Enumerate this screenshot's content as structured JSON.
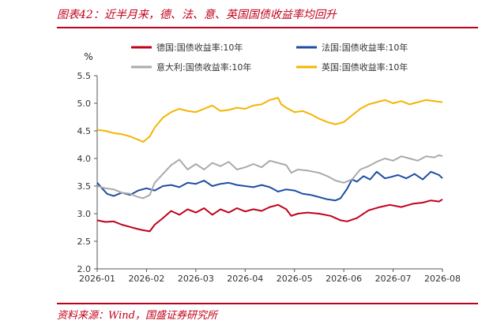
{
  "header": {
    "title": "图表42：近半月来，德、法、意、英国国债收益率均回升"
  },
  "footer": {
    "source": "资料来源：Wind，国盛证券研究所"
  },
  "chart_data": {
    "type": "line",
    "title": "",
    "ylabel": "%",
    "ylim": [
      2.0,
      5.5
    ],
    "yticks": [
      "2.0",
      "2.5",
      "3.0",
      "3.5",
      "4.0",
      "4.5",
      "5.0",
      "5.5"
    ],
    "xlim": [
      0,
      210
    ],
    "xticks": [
      {
        "label": "2026-01",
        "x": 0
      },
      {
        "label": "2026-02",
        "x": 30
      },
      {
        "label": "2026-03",
        "x": 60
      },
      {
        "label": "2026-04",
        "x": 90
      },
      {
        "label": "2026-05",
        "x": 120
      },
      {
        "label": "2026-06",
        "x": 150
      },
      {
        "label": "2026-07",
        "x": 180
      },
      {
        "label": "2026-08",
        "x": 210
      }
    ],
    "grid": false,
    "legend_position": "top",
    "series": [
      {
        "name": "德国:国债收益率:10年",
        "color": "#c0001a",
        "points": [
          [
            0,
            2.88
          ],
          [
            5,
            2.85
          ],
          [
            10,
            2.86
          ],
          [
            15,
            2.8
          ],
          [
            20,
            2.76
          ],
          [
            25,
            2.72
          ],
          [
            28,
            2.7
          ],
          [
            32,
            2.68
          ],
          [
            35,
            2.8
          ],
          [
            40,
            2.92
          ],
          [
            45,
            3.05
          ],
          [
            50,
            2.98
          ],
          [
            55,
            3.08
          ],
          [
            60,
            3.02
          ],
          [
            65,
            3.1
          ],
          [
            70,
            2.98
          ],
          [
            75,
            3.08
          ],
          [
            80,
            3.02
          ],
          [
            85,
            3.1
          ],
          [
            90,
            3.04
          ],
          [
            95,
            3.08
          ],
          [
            100,
            3.05
          ],
          [
            105,
            3.12
          ],
          [
            110,
            3.16
          ],
          [
            115,
            3.08
          ],
          [
            118,
            2.96
          ],
          [
            122,
            3.0
          ],
          [
            128,
            3.02
          ],
          [
            135,
            3.0
          ],
          [
            142,
            2.96
          ],
          [
            148,
            2.88
          ],
          [
            152,
            2.86
          ],
          [
            158,
            2.92
          ],
          [
            165,
            3.06
          ],
          [
            172,
            3.12
          ],
          [
            178,
            3.16
          ],
          [
            185,
            3.12
          ],
          [
            192,
            3.18
          ],
          [
            198,
            3.2
          ],
          [
            203,
            3.24
          ],
          [
            208,
            3.22
          ],
          [
            210,
            3.26
          ]
        ]
      },
      {
        "name": "法国:国债收益率:10年",
        "color": "#1f4ea3",
        "points": [
          [
            0,
            3.56
          ],
          [
            3,
            3.46
          ],
          [
            6,
            3.36
          ],
          [
            10,
            3.32
          ],
          [
            15,
            3.38
          ],
          [
            20,
            3.34
          ],
          [
            25,
            3.42
          ],
          [
            30,
            3.46
          ],
          [
            35,
            3.42
          ],
          [
            40,
            3.5
          ],
          [
            45,
            3.52
          ],
          [
            50,
            3.48
          ],
          [
            55,
            3.56
          ],
          [
            60,
            3.54
          ],
          [
            65,
            3.6
          ],
          [
            70,
            3.5
          ],
          [
            75,
            3.54
          ],
          [
            80,
            3.56
          ],
          [
            85,
            3.52
          ],
          [
            90,
            3.5
          ],
          [
            95,
            3.48
          ],
          [
            100,
            3.52
          ],
          [
            105,
            3.48
          ],
          [
            110,
            3.4
          ],
          [
            115,
            3.44
          ],
          [
            120,
            3.42
          ],
          [
            125,
            3.36
          ],
          [
            130,
            3.34
          ],
          [
            135,
            3.3
          ],
          [
            140,
            3.26
          ],
          [
            145,
            3.24
          ],
          [
            148,
            3.28
          ],
          [
            152,
            3.45
          ],
          [
            155,
            3.62
          ],
          [
            158,
            3.58
          ],
          [
            162,
            3.68
          ],
          [
            166,
            3.62
          ],
          [
            170,
            3.76
          ],
          [
            175,
            3.64
          ],
          [
            178,
            3.66
          ],
          [
            183,
            3.7
          ],
          [
            188,
            3.64
          ],
          [
            193,
            3.72
          ],
          [
            198,
            3.62
          ],
          [
            203,
            3.76
          ],
          [
            208,
            3.7
          ],
          [
            210,
            3.64
          ]
        ]
      },
      {
        "name": "意大利:国债收益率:10年",
        "color": "#aaaaaa",
        "points": [
          [
            0,
            3.5
          ],
          [
            5,
            3.46
          ],
          [
            10,
            3.44
          ],
          [
            15,
            3.38
          ],
          [
            20,
            3.36
          ],
          [
            25,
            3.3
          ],
          [
            28,
            3.28
          ],
          [
            32,
            3.34
          ],
          [
            35,
            3.56
          ],
          [
            40,
            3.72
          ],
          [
            45,
            3.88
          ],
          [
            50,
            3.98
          ],
          [
            55,
            3.8
          ],
          [
            60,
            3.9
          ],
          [
            65,
            3.8
          ],
          [
            70,
            3.92
          ],
          [
            75,
            3.86
          ],
          [
            80,
            3.94
          ],
          [
            85,
            3.8
          ],
          [
            90,
            3.84
          ],
          [
            95,
            3.9
          ],
          [
            100,
            3.84
          ],
          [
            105,
            3.96
          ],
          [
            110,
            3.92
          ],
          [
            115,
            3.88
          ],
          [
            118,
            3.74
          ],
          [
            122,
            3.8
          ],
          [
            128,
            3.78
          ],
          [
            135,
            3.74
          ],
          [
            140,
            3.68
          ],
          [
            145,
            3.6
          ],
          [
            150,
            3.56
          ],
          [
            155,
            3.62
          ],
          [
            160,
            3.8
          ],
          [
            165,
            3.86
          ],
          [
            170,
            3.94
          ],
          [
            175,
            4.0
          ],
          [
            180,
            3.96
          ],
          [
            185,
            4.04
          ],
          [
            190,
            4.0
          ],
          [
            195,
            3.96
          ],
          [
            200,
            4.04
          ],
          [
            205,
            4.02
          ],
          [
            208,
            4.06
          ],
          [
            210,
            4.04
          ]
        ]
      },
      {
        "name": "英国:国债收益率:10年",
        "color": "#f4b400",
        "points": [
          [
            0,
            4.52
          ],
          [
            5,
            4.5
          ],
          [
            10,
            4.46
          ],
          [
            15,
            4.44
          ],
          [
            20,
            4.4
          ],
          [
            25,
            4.34
          ],
          [
            28,
            4.3
          ],
          [
            32,
            4.4
          ],
          [
            35,
            4.56
          ],
          [
            40,
            4.74
          ],
          [
            45,
            4.84
          ],
          [
            50,
            4.9
          ],
          [
            55,
            4.86
          ],
          [
            60,
            4.84
          ],
          [
            65,
            4.9
          ],
          [
            70,
            4.96
          ],
          [
            75,
            4.86
          ],
          [
            80,
            4.88
          ],
          [
            85,
            4.92
          ],
          [
            90,
            4.9
          ],
          [
            95,
            4.96
          ],
          [
            100,
            4.98
          ],
          [
            105,
            5.06
          ],
          [
            110,
            5.1
          ],
          [
            112,
            4.98
          ],
          [
            115,
            4.92
          ],
          [
            120,
            4.84
          ],
          [
            125,
            4.86
          ],
          [
            130,
            4.8
          ],
          [
            135,
            4.72
          ],
          [
            140,
            4.66
          ],
          [
            145,
            4.62
          ],
          [
            150,
            4.66
          ],
          [
            155,
            4.78
          ],
          [
            160,
            4.9
          ],
          [
            165,
            4.98
          ],
          [
            170,
            5.02
          ],
          [
            175,
            5.06
          ],
          [
            180,
            5.0
          ],
          [
            185,
            5.04
          ],
          [
            190,
            4.98
          ],
          [
            195,
            5.02
          ],
          [
            200,
            5.06
          ],
          [
            205,
            5.04
          ],
          [
            210,
            5.02
          ]
        ]
      }
    ]
  }
}
